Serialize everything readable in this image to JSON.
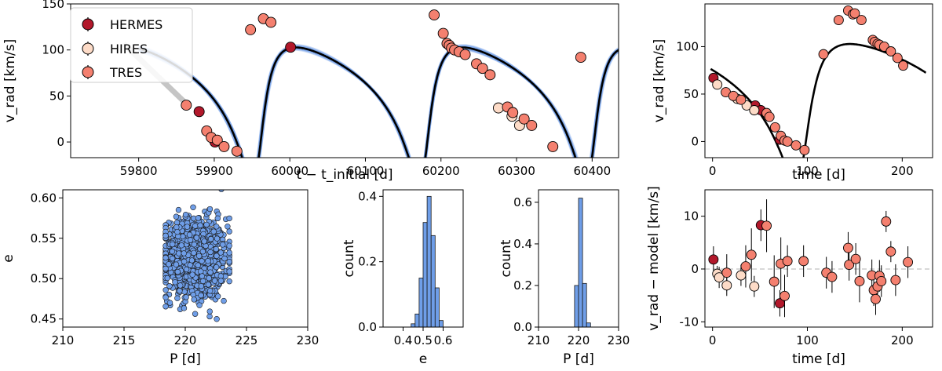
{
  "figure": {
    "legend_entries": [
      "HERMES",
      "HIRES",
      "TRES"
    ],
    "instrument_colors": {
      "HERMES": "#b2182b",
      "HIRES": "#fddbc7",
      "TRES": "#f4806f"
    },
    "model_color": "#000000",
    "posterior_color": "#6f9ee8"
  },
  "chart_data": [
    {
      "id": "rv_time_series",
      "type": "line",
      "xlabel": "t − t_initial [d]",
      "ylabel": "v_rad [km/s]",
      "xlim": [
        59710,
        60435
      ],
      "ylim": [
        -17,
        150
      ],
      "xticks": [
        59800,
        59900,
        60000,
        60100,
        60200,
        60300,
        60400
      ],
      "yticks": [
        0,
        50,
        100,
        150
      ],
      "legend_position": "upper-left",
      "series": [
        {
          "name": "HERMES",
          "points": [
            [
              59880,
              33
            ],
            [
              59901,
              0
            ],
            [
              60001,
              103
            ]
          ]
        },
        {
          "name": "HIRES",
          "points": [
            [
              60276,
              37
            ],
            [
              60294,
              28
            ],
            [
              60304,
              18
            ]
          ]
        },
        {
          "name": "TRES",
          "points": [
            [
              59863,
              40
            ],
            [
              59890,
              12
            ],
            [
              59896,
              5
            ],
            [
              59904,
              2
            ],
            [
              59913,
              -5
            ],
            [
              59930,
              -10
            ],
            [
              59948,
              122
            ],
            [
              59965,
              134
            ],
            [
              59975,
              130
            ],
            [
              60191,
              138
            ],
            [
              60203,
              118
            ],
            [
              60208,
              107
            ],
            [
              60211,
              105
            ],
            [
              60214,
              102
            ],
            [
              60218,
              100
            ],
            [
              60224,
              98
            ],
            [
              60232,
              95
            ],
            [
              60247,
              85
            ],
            [
              60255,
              80
            ],
            [
              60265,
              73
            ],
            [
              60288,
              38
            ],
            [
              60295,
              32
            ],
            [
              60310,
              25
            ],
            [
              60320,
              18
            ],
            [
              60348,
              -5
            ],
            [
              60385,
              92
            ]
          ]
        }
      ],
      "model": {
        "period_days": 220.5,
        "eccentricity": 0.53,
        "K": 73,
        "gamma": 58.5,
        "omega_deg": 222,
        "t_peri": 60178,
        "t_start": 59800
      }
    },
    {
      "id": "rv_phase",
      "type": "line",
      "xlabel": "time [d]",
      "ylabel": "v_rad [km/s]",
      "xlim": [
        -8,
        232
      ],
      "ylim": [
        -17,
        145
      ],
      "xticks": [
        0,
        100,
        200
      ],
      "yticks": [
        0,
        50,
        100
      ],
      "series": [
        {
          "name": "HERMES",
          "points": [
            [
              1,
              67
            ],
            [
              45,
              38
            ],
            [
              51,
              33
            ],
            [
              71,
              2
            ]
          ]
        },
        {
          "name": "HIRES",
          "points": [
            [
              5,
              60
            ],
            [
              26,
              45
            ],
            [
              36,
              38
            ],
            [
              44,
              33
            ]
          ]
        },
        {
          "name": "TRES",
          "points": [
            [
              14,
              52
            ],
            [
              22,
              48
            ],
            [
              30,
              44
            ],
            [
              57,
              30
            ],
            [
              60,
              26
            ],
            [
              66,
              15
            ],
            [
              72,
              6
            ],
            [
              76,
              1
            ],
            [
              79,
              0
            ],
            [
              88,
              -4
            ],
            [
              97,
              -9
            ],
            [
              117,
              92
            ],
            [
              133,
              128
            ],
            [
              143,
              138
            ],
            [
              148,
              134
            ],
            [
              150,
              135
            ],
            [
              157,
              128
            ],
            [
              169,
              107
            ],
            [
              171,
              105
            ],
            [
              174,
              103
            ],
            [
              176,
              102
            ],
            [
              181,
              100
            ],
            [
              188,
              95
            ],
            [
              195,
              88
            ],
            [
              201,
              80
            ]
          ]
        }
      ]
    },
    {
      "id": "posterior_scatter",
      "type": "scatter",
      "xlabel": "P [d]",
      "ylabel": "e",
      "xlim": [
        210,
        230
      ],
      "ylim": [
        0.44,
        0.61
      ],
      "xticks": [
        210,
        215,
        220,
        225,
        230
      ],
      "yticks": [
        0.45,
        0.5,
        0.55,
        0.6
      ],
      "posterior": {
        "center_P": 220.8,
        "sd_P": 1.3,
        "center_e": 0.525,
        "sd_e": 0.025,
        "n_samples": 1200
      }
    },
    {
      "id": "hist_e",
      "type": "bar",
      "xlabel": "e",
      "ylabel": "count",
      "xlim": [
        0.3,
        0.7
      ],
      "ylim": [
        0,
        0.42
      ],
      "xticks": [
        0.4,
        0.5,
        0.6
      ],
      "yticks": [
        0.0,
        0.2,
        0.4
      ],
      "bin_width": 0.02,
      "bins": [
        [
          0.44,
          0.01
        ],
        [
          0.46,
          0.04
        ],
        [
          0.48,
          0.15
        ],
        [
          0.5,
          0.32
        ],
        [
          0.52,
          0.4
        ],
        [
          0.54,
          0.28
        ],
        [
          0.56,
          0.12
        ],
        [
          0.58,
          0.02
        ]
      ]
    },
    {
      "id": "hist_P",
      "type": "bar",
      "xlabel": "P [d]",
      "ylabel": "count",
      "xlim": [
        210,
        230
      ],
      "ylim": [
        0,
        0.66
      ],
      "xticks": [
        210,
        220,
        230
      ],
      "yticks": [
        0.0,
        0.2,
        0.4,
        0.6
      ],
      "bin_width": 1,
      "bins": [
        [
          219,
          0.2
        ],
        [
          220,
          0.62
        ],
        [
          221,
          0.21
        ],
        [
          222,
          0.02
        ]
      ]
    },
    {
      "id": "residuals",
      "type": "scatter",
      "xlabel": "time [d]",
      "ylabel": "v_rad − model [km/s]",
      "xlim": [
        -8,
        232
      ],
      "ylim": [
        -11,
        15
      ],
      "xticks": [
        0,
        100,
        200
      ],
      "yticks": [
        -10,
        0,
        10
      ],
      "zero_line": true,
      "series": [
        {
          "name": "HERMES",
          "points": [
            [
              1,
              1.8,
              2.5
            ],
            [
              51,
              8.3,
              3
            ],
            [
              71,
              -6.5,
              2.5
            ]
          ]
        },
        {
          "name": "HIRES",
          "points": [
            [
              5,
              -0.9,
              1.5
            ],
            [
              7,
              -1.6,
              2
            ],
            [
              15,
              -3.1,
              2
            ],
            [
              30,
              -1.2,
              2
            ],
            [
              44,
              -3.3,
              2
            ]
          ]
        },
        {
          "name": "TRES",
          "points": [
            [
              15,
              -0.7,
              3.5
            ],
            [
              35,
              0.5,
              4
            ],
            [
              41,
              2.7,
              5
            ],
            [
              57,
              8.2,
              5
            ],
            [
              65,
              -2.4,
              5
            ],
            [
              72,
              1.0,
              5
            ],
            [
              76,
              -5.1,
              4
            ],
            [
              79,
              1.5,
              3
            ],
            [
              96,
              1.5,
              3
            ],
            [
              120,
              -0.7,
              3
            ],
            [
              126,
              -1.5,
              3
            ],
            [
              143,
              4.0,
              3
            ],
            [
              144,
              0.8,
              3
            ],
            [
              151,
              1.9,
              3
            ],
            [
              155,
              -2.3,
              4
            ],
            [
              168,
              -1.2,
              3
            ],
            [
              170,
              -4.0,
              3
            ],
            [
              172,
              -5.7,
              3
            ],
            [
              174,
              -3.3,
              3
            ],
            [
              176,
              -1.3,
              3
            ],
            [
              178,
              -2.3,
              3
            ],
            [
              183,
              9.0,
              2
            ],
            [
              188,
              3.3,
              2
            ],
            [
              193,
              -2.1,
              3
            ],
            [
              206,
              1.3,
              3
            ]
          ]
        }
      ]
    }
  ]
}
